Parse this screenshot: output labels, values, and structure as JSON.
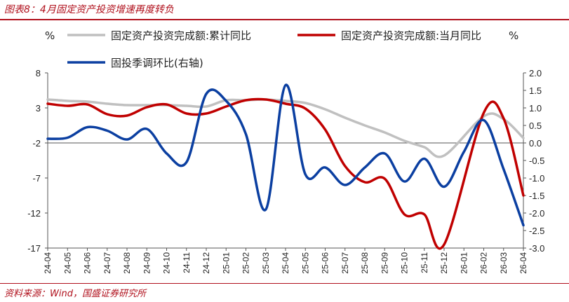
{
  "figure": {
    "title": "图表8：4月固定资产投资增速再度转负",
    "source": "资料来源：Wind，国盛证券研究所"
  },
  "chart_data": {
    "type": "line",
    "left_unit": "%",
    "x": [
      "24-04",
      "24-05",
      "24-06",
      "24-07",
      "24-08",
      "24-09",
      "24-10",
      "24-11",
      "24-12",
      "25-01",
      "25-02",
      "25-03",
      "25-04",
      "25-05",
      "25-06",
      "25-07",
      "25-08",
      "25-09",
      "25-10",
      "25-11",
      "25-12",
      "26-01",
      "26-02",
      "26-03",
      "26-04"
    ],
    "left_axis": {
      "min": -17,
      "max": 8,
      "ticks": [
        8,
        3,
        -2,
        -7,
        -12,
        -17
      ]
    },
    "right_axis": {
      "min": -3.0,
      "max": 2.0,
      "ticks": [
        "2.0",
        "1.5",
        "1.0",
        "0.5",
        "0.0",
        "-0.5",
        "-1.0",
        "-1.5",
        "-2.0",
        "-2.5",
        "-3.0"
      ]
    },
    "zero_line_right": 0.0,
    "series": [
      {
        "name": "固定资产投资完成额:累计同比",
        "axis": "left",
        "color": "#c0c0c0",
        "values": [
          4.2,
          4.0,
          3.9,
          3.6,
          3.4,
          3.4,
          3.4,
          3.3,
          3.2,
          4.1,
          4.1,
          4.2,
          4.0,
          3.7,
          2.8,
          1.6,
          0.5,
          -0.5,
          -1.7,
          -2.6,
          -3.8,
          null,
          1.8,
          1.4,
          -1.3
        ]
      },
      {
        "name": "固定资产投资完成额:当月同比",
        "axis": "left",
        "color": "#c00000",
        "values": [
          3.6,
          3.3,
          3.5,
          2.1,
          1.9,
          3.1,
          3.5,
          2.2,
          2.2,
          3.2,
          4.1,
          4.2,
          3.6,
          2.9,
          -0.1,
          -5.3,
          -7.6,
          -7.1,
          -12.2,
          -12.2,
          -16.5,
          null,
          2.3,
          1.5,
          -9.5
        ]
      },
      {
        "name": "固投季调环比(右轴)",
        "axis": "right",
        "color": "#0b3fa1",
        "values": [
          0.12,
          0.15,
          0.45,
          0.35,
          0.1,
          0.4,
          -0.3,
          -0.55,
          1.4,
          1.2,
          0.25,
          -1.9,
          1.65,
          -0.9,
          -0.7,
          -1.2,
          -0.7,
          -0.3,
          -1.1,
          -0.45,
          -1.25,
          -0.25,
          0.65,
          -0.75,
          -2.35
        ]
      }
    ]
  }
}
